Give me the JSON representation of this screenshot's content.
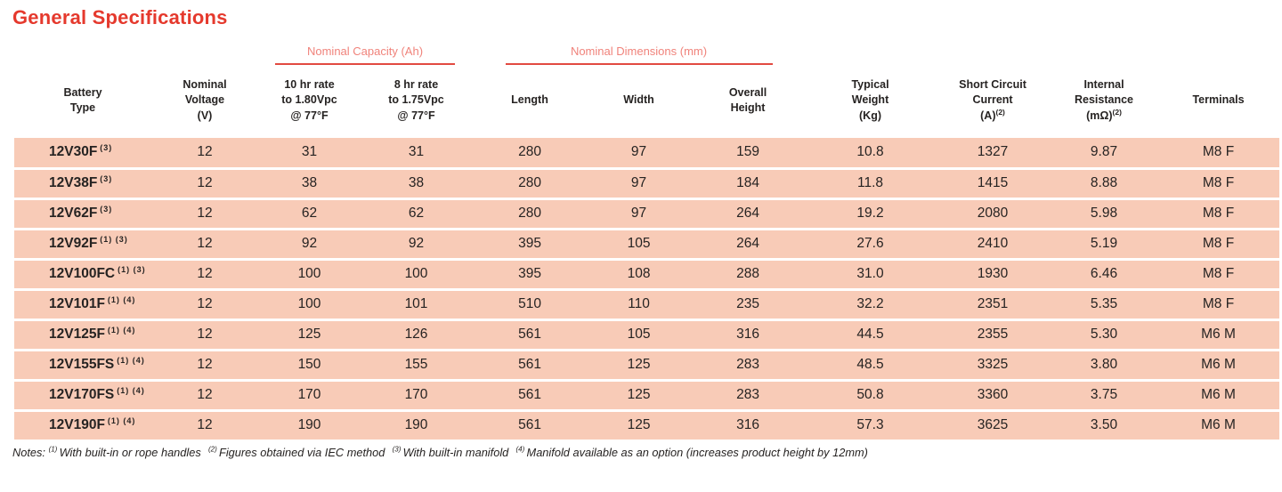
{
  "title": "General Specifications",
  "groups": {
    "capacity": "Nominal Capacity (Ah)",
    "dimensions": "Nominal Dimensions (mm)"
  },
  "columns": [
    {
      "key": "battery-type",
      "label": "Battery\nType",
      "sup": ""
    },
    {
      "key": "nominal-voltage",
      "label": "Nominal\nVoltage\n(V)",
      "sup": ""
    },
    {
      "key": "capacity-10hr",
      "label": "10 hr rate\nto 1.80Vpc\n@ 77°F",
      "sup": ""
    },
    {
      "key": "capacity-8hr",
      "label": "8 hr rate\nto 1.75Vpc\n@ 77°F",
      "sup": ""
    },
    {
      "key": "length",
      "label": "Length",
      "sup": ""
    },
    {
      "key": "width",
      "label": "Width",
      "sup": ""
    },
    {
      "key": "overall-height",
      "label": "Overall\nHeight",
      "sup": ""
    },
    {
      "key": "typical-weight",
      "label": "Typical\nWeight\n(Kg)",
      "sup": ""
    },
    {
      "key": "short-circuit",
      "label": "Short Circuit\nCurrent\n(A)",
      "sup": "(2)"
    },
    {
      "key": "internal-resistance",
      "label": "Internal\nResistance\n(mΩ)",
      "sup": "(2)"
    },
    {
      "key": "terminals",
      "label": "Terminals",
      "sup": ""
    }
  ],
  "rows": [
    {
      "battery": "12V30F",
      "notes": "(3)",
      "values": [
        "12",
        "31",
        "31",
        "280",
        "97",
        "159",
        "10.8",
        "1327",
        "9.87",
        "M8 F"
      ]
    },
    {
      "battery": "12V38F",
      "notes": "(3)",
      "values": [
        "12",
        "38",
        "38",
        "280",
        "97",
        "184",
        "11.8",
        "1415",
        "8.88",
        "M8 F"
      ]
    },
    {
      "battery": "12V62F",
      "notes": "(3)",
      "values": [
        "12",
        "62",
        "62",
        "280",
        "97",
        "264",
        "19.2",
        "2080",
        "5.98",
        "M8 F"
      ]
    },
    {
      "battery": "12V92F",
      "notes": "(1) (3)",
      "values": [
        "12",
        "92",
        "92",
        "395",
        "105",
        "264",
        "27.6",
        "2410",
        "5.19",
        "M8 F"
      ]
    },
    {
      "battery": "12V100FC",
      "notes": "(1) (3)",
      "values": [
        "12",
        "100",
        "100",
        "395",
        "108",
        "288",
        "31.0",
        "1930",
        "6.46",
        "M8 F"
      ]
    },
    {
      "battery": "12V101F",
      "notes": "(1) (4)",
      "values": [
        "12",
        "100",
        "101",
        "510",
        "110",
        "235",
        "32.2",
        "2351",
        "5.35",
        "M8 F"
      ]
    },
    {
      "battery": "12V125F",
      "notes": "(1) (4)",
      "values": [
        "12",
        "125",
        "126",
        "561",
        "105",
        "316",
        "44.5",
        "2355",
        "5.30",
        "M6 M"
      ]
    },
    {
      "battery": "12V155FS",
      "notes": "(1) (4)",
      "values": [
        "12",
        "150",
        "155",
        "561",
        "125",
        "283",
        "48.5",
        "3325",
        "3.80",
        "M6 M"
      ]
    },
    {
      "battery": "12V170FS",
      "notes": "(1) (4)",
      "values": [
        "12",
        "170",
        "170",
        "561",
        "125",
        "283",
        "50.8",
        "3360",
        "3.75",
        "M6 M"
      ]
    },
    {
      "battery": "12V190F",
      "notes": "(1) (4)",
      "values": [
        "12",
        "190",
        "190",
        "561",
        "125",
        "316",
        "57.3",
        "3625",
        "3.50",
        "M6 M"
      ]
    }
  ],
  "footnotes": {
    "prefix": "Notes:",
    "items": [
      {
        "marker": "(1)",
        "text": "With built-in or rope handles"
      },
      {
        "marker": "(2)",
        "text": "Figures obtained via IEC method"
      },
      {
        "marker": "(3)",
        "text": "With built-in manifold"
      },
      {
        "marker": "(4)",
        "text": "Manifold available as an option (increases product height by 12mm)"
      }
    ]
  },
  "colors": {
    "title_red": "#e5392d",
    "group_label": "#f0837b",
    "underline_red": "#e24a41",
    "row_background": "#f8cbb7",
    "text": "#262322"
  }
}
